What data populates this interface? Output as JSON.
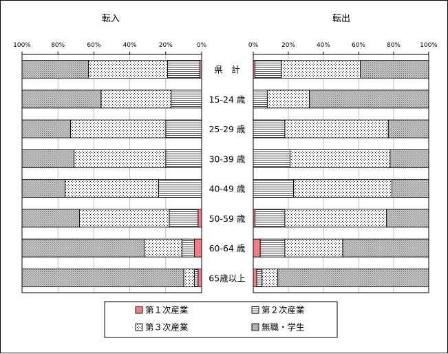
{
  "chart_data": [
    {
      "type": "bar",
      "orientation": "horizontal-stacked-100",
      "direction": "right-to-left",
      "title": "転入",
      "categories": [
        "県　計",
        "15-24 歳",
        "25-29 歳",
        "30-39 歳",
        "40-49 歳",
        "50-59 歳",
        "60-64 歳",
        "65歳以上"
      ],
      "series": [
        {
          "name": "第１次産業",
          "values": [
            1,
            0,
            0,
            0,
            0,
            2,
            4,
            2
          ]
        },
        {
          "name": "第２次産業",
          "values": [
            18,
            17,
            20,
            20,
            24,
            16,
            7,
            2
          ]
        },
        {
          "name": "第３次産業",
          "values": [
            44,
            39,
            53,
            51,
            52,
            50,
            21,
            6
          ]
        },
        {
          "name": "無職・学生",
          "values": [
            37,
            44,
            27,
            29,
            24,
            32,
            68,
            90
          ]
        }
      ],
      "xlim": [
        100,
        0
      ],
      "xticks": [
        "100%",
        "80%",
        "60%",
        "40%",
        "20%",
        "0%"
      ],
      "grid": true
    },
    {
      "type": "bar",
      "orientation": "horizontal-stacked-100",
      "direction": "left-to-right",
      "title": "転出",
      "categories": [
        "県　計",
        "15-24 歳",
        "25-29 歳",
        "30-39 歳",
        "40-49 歳",
        "50-59 歳",
        "60-64 歳",
        "65歳以上"
      ],
      "series": [
        {
          "name": "第１次産業",
          "values": [
            1,
            0,
            0,
            0,
            0,
            1,
            4,
            2
          ]
        },
        {
          "name": "第２次産業",
          "values": [
            15,
            8,
            18,
            21,
            23,
            17,
            14,
            3
          ]
        },
        {
          "name": "第３次産業",
          "values": [
            45,
            24,
            59,
            57,
            56,
            58,
            33,
            9
          ]
        },
        {
          "name": "無職・学生",
          "values": [
            39,
            68,
            23,
            22,
            21,
            24,
            49,
            86
          ]
        }
      ],
      "xlim": [
        0,
        100
      ],
      "xticks": [
        "0%",
        "20%",
        "40%",
        "60%",
        "80%",
        "100%"
      ],
      "grid": true
    }
  ],
  "legend": {
    "items": [
      {
        "name": "第１次産業",
        "color": "#f47c86"
      },
      {
        "name": "第２次産業",
        "color": "#ffffff"
      },
      {
        "name": "第３次産業",
        "color": "#ffffff"
      },
      {
        "name": "無職・学生",
        "color": "#bdbdbd"
      }
    ],
    "placement": "bottom-center"
  }
}
